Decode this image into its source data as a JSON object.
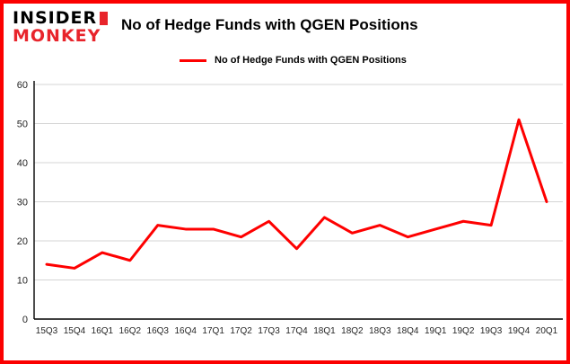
{
  "brand": {
    "line1": "INSIDER",
    "line2": "MONKEY"
  },
  "header": {
    "title": "No of Hedge Funds with QGEN Positions"
  },
  "legend": {
    "label": "No of Hedge Funds with QGEN Positions"
  },
  "colors": {
    "border": "#fb0000",
    "line": "#fe0000",
    "grid": "#d4d4d4",
    "axis": "#000000",
    "tick_text": "#262626"
  },
  "chart_data": {
    "type": "line",
    "title": "No of Hedge Funds with QGEN Positions",
    "categories": [
      "15Q3",
      "15Q4",
      "16Q1",
      "16Q2",
      "16Q3",
      "16Q4",
      "17Q1",
      "17Q2",
      "17Q3",
      "17Q4",
      "18Q1",
      "18Q2",
      "18Q3",
      "18Q4",
      "19Q1",
      "19Q2",
      "19Q3",
      "19Q4",
      "20Q1"
    ],
    "values": [
      14,
      13,
      17,
      15,
      24,
      23,
      23,
      21,
      25,
      18,
      26,
      22,
      24,
      21,
      23,
      25,
      24,
      51,
      30
    ],
    "xlabel": "",
    "ylabel": "",
    "ylim": [
      0,
      60
    ],
    "yticks": [
      0,
      10,
      20,
      30,
      40,
      50,
      60
    ],
    "grid": true,
    "legend_position": "top-left",
    "line_color": "#fe0000"
  }
}
